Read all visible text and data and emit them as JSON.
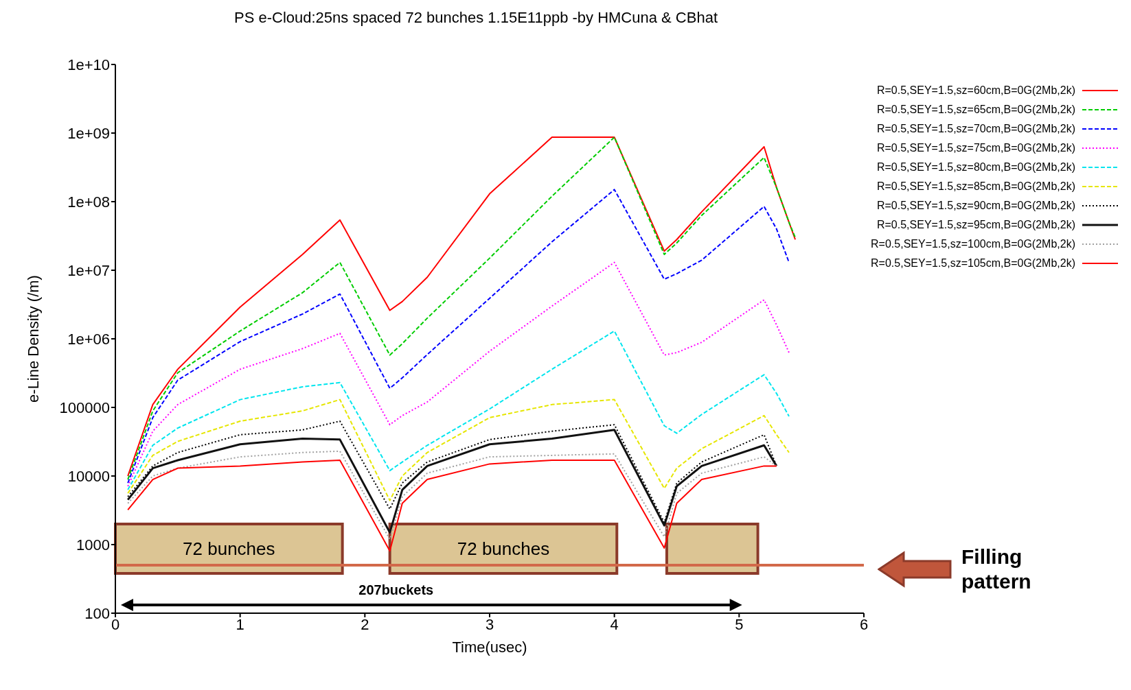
{
  "chart_data": {
    "type": "line",
    "title": "PS e-Cloud:25ns spaced 72 bunches 1.15E11ppb -by HMCuna & CBhat",
    "xlabel": "Time(usec)",
    "ylabel": "e-Line Density (/m)",
    "x": [
      0.1,
      0.3,
      0.5,
      1,
      1.5,
      1.8,
      2.2,
      2.3,
      2.5,
      3,
      3.5,
      4,
      4.4,
      4.5,
      4.7,
      5.2,
      5.3,
      5.4,
      5.45
    ],
    "series": [
      {
        "name": "R=0.5,SEY=1.5,sz=60cm,B=0G(2Mb,2k)",
        "color": "#ff0000",
        "line_style": "solid",
        "values": [
          10000,
          110000,
          360000,
          2900000,
          17000000,
          54000000,
          2600000,
          3500000,
          7900000,
          130000000,
          870000000,
          870000000,
          19000000,
          28000000,
          71000000,
          630000000,
          160000000,
          50000000,
          28000000
        ]
      },
      {
        "name": "R=0.5,SEY=1.5,sz=65cm,B=0G(2Mb,2k)",
        "color": "#00cc00",
        "line_style": "dashed",
        "values": [
          8900,
          89000,
          320000,
          1300000,
          4700000,
          13000000,
          580000,
          850000,
          2000000,
          15000000,
          120000000,
          870000000,
          17000000,
          25000000,
          63000000,
          440000000,
          160000000,
          50000000,
          30000000
        ]
      },
      {
        "name": "R=0.5,SEY=1.5,sz=70cm,B=0G(2Mb,2k)",
        "color": "#0000ff",
        "line_style": "dashed",
        "values": [
          7900,
          71000,
          250000,
          910000,
          2300000,
          4500000,
          190000,
          270000,
          590000,
          3900000,
          26000000,
          150000000,
          7400000,
          8900000,
          14000000,
          85000000,
          40000000,
          13000000,
          null
        ]
      },
      {
        "name": "R=0.5,SEY=1.5,sz=75cm,B=0G(2Mb,2k)",
        "color": "#ff00ff",
        "line_style": "dotted",
        "values": [
          7100,
          45000,
          110000,
          360000,
          720000,
          1200000,
          56000,
          76000,
          120000,
          660000,
          3000000,
          13000000,
          580000,
          630000,
          890000,
          3700000,
          1600000,
          630000,
          null
        ]
      },
      {
        "name": "R=0.5,SEY=1.5,sz=80cm,B=0G(2Mb,2k)",
        "color": "#00e5ee",
        "line_style": "dashed",
        "values": [
          6300,
          28000,
          50000,
          130000,
          200000,
          230000,
          12000,
          16000,
          28000,
          95000,
          360000,
          1300000,
          54000,
          42000,
          79000,
          300000,
          160000,
          74000,
          null
        ]
      },
      {
        "name": "R=0.5,SEY=1.5,sz=85cm,B=0G(2Mb,2k)",
        "color": "#e6e600",
        "line_style": "dashed",
        "values": [
          5600,
          20000,
          32000,
          63000,
          89000,
          130000,
          4400,
          10000,
          22000,
          71000,
          110000,
          130000,
          6600,
          13000,
          25000,
          76000,
          40000,
          22000,
          null
        ]
      },
      {
        "name": "R=0.5,SEY=1.5,sz=90cm,B=0G(2Mb,2k)",
        "color": "#000000",
        "line_style": "dotted",
        "values": [
          5000,
          14000,
          22000,
          40000,
          47000,
          63000,
          3300,
          7900,
          16000,
          34000,
          45000,
          56000,
          2100,
          7900,
          16000,
          40000,
          14000,
          null,
          null
        ]
      },
      {
        "name": "R=0.5,SEY=1.5,sz=95cm,B=0G(2Mb,2k)",
        "color": "#111111",
        "line_style": "solid",
        "values": [
          4500,
          13000,
          17000,
          29000,
          35000,
          34000,
          1500,
          6300,
          14000,
          29000,
          35000,
          47000,
          1900,
          7100,
          14000,
          28000,
          14000,
          null,
          null
        ]
      },
      {
        "name": "R=0.5,SEY=1.5,sz=100cm,B=0G(2Mb,2k)",
        "color": "#a0a0a0",
        "line_style": "dotted",
        "values": [
          4000,
          10000,
          13000,
          19000,
          22000,
          23000,
          1200,
          5000,
          11000,
          19000,
          20000,
          21000,
          1300,
          5600,
          11000,
          19000,
          14000,
          null,
          null
        ]
      },
      {
        "name": "R=0.5,SEY=1.5,sz=105cm,B=0G(2Mb,2k)",
        "color": "#ff0000",
        "line_style": "solid",
        "values": [
          3200,
          8900,
          13000,
          14000,
          16000,
          17000,
          810,
          4000,
          8900,
          15000,
          17000,
          17000,
          890,
          4000,
          8900,
          14000,
          14000,
          null,
          null
        ]
      }
    ],
    "log": "y",
    "xlim": [
      0,
      6
    ],
    "xticks": [
      0,
      1,
      2,
      3,
      4,
      5,
      6
    ],
    "ylim": [
      100,
      10000000000
    ],
    "yticks": [
      100,
      1000,
      10000,
      100000,
      {
        "value": 1000000,
        "label": "1e+06"
      },
      {
        "value": 10000000,
        "label": "1e+07"
      },
      {
        "value": 100000000,
        "label": "1e+08"
      },
      {
        "value": 1000000000,
        "label": "1e+09"
      },
      {
        "value": 10000000000,
        "label": "1e+10"
      }
    ],
    "grid": false,
    "legend": "right",
    "bands": [
      {
        "axis": "x",
        "from": 0,
        "to": 1.82,
        "label": "72 bunches",
        "color": "#dcc594"
      },
      {
        "axis": "x",
        "from": 2.2,
        "to": 4.02,
        "label": "72 bunches",
        "color": "#dcc594"
      },
      {
        "axis": "x",
        "from": 4.42,
        "to": 5.15,
        "color": "#dcc594"
      }
    ],
    "ref_lines": [
      {
        "axis": "y",
        "value": 500,
        "color": "#d2694a"
      }
    ],
    "annotations": [
      "207buckets",
      "Filling pattern"
    ]
  }
}
